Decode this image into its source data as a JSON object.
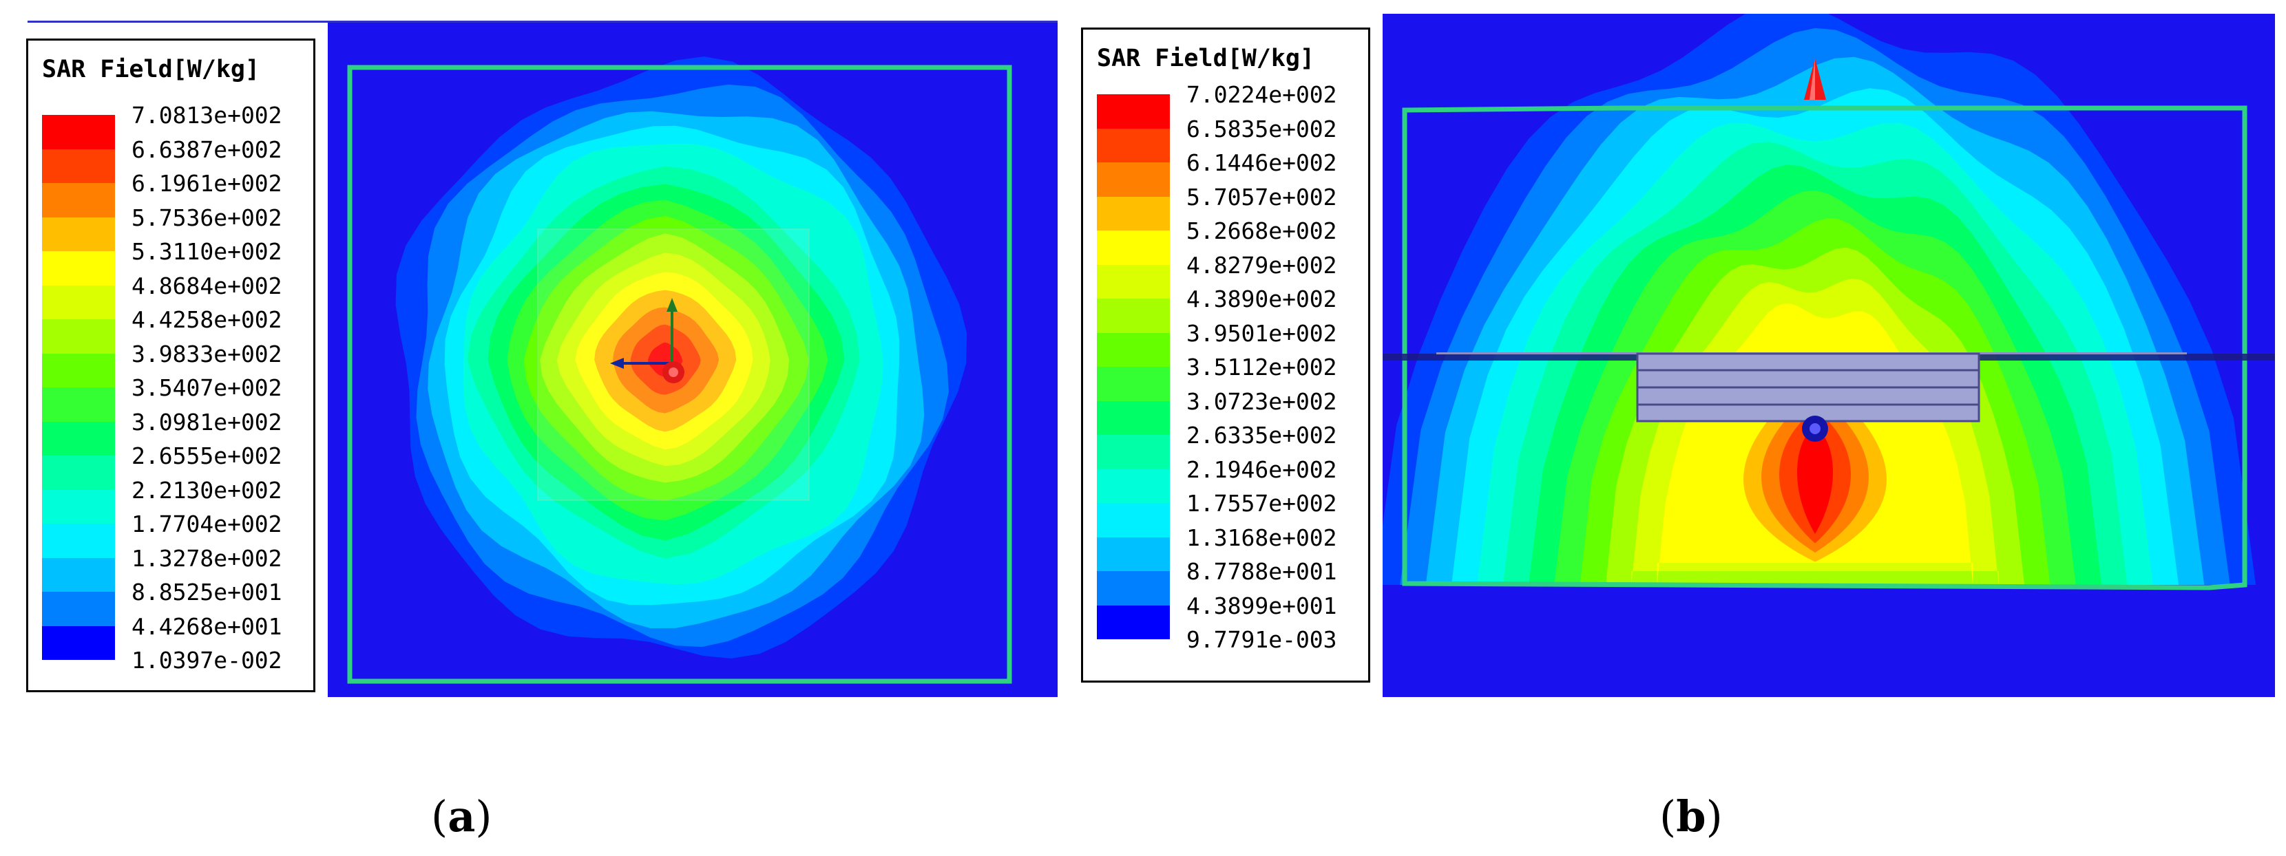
{
  "panels": [
    {
      "id": "a",
      "legend_title": "SAR Field[W/kg]",
      "legend_values": [
        "7.0813e+002",
        "6.6387e+002",
        "6.1961e+002",
        "5.7536e+002",
        "5.3110e+002",
        "4.8684e+002",
        "4.4258e+002",
        "3.9833e+002",
        "3.5407e+002",
        "3.0981e+002",
        "2.6555e+002",
        "2.2130e+002",
        "1.7704e+002",
        "1.3278e+002",
        "8.8525e+001",
        "4.4268e+001",
        "1.0397e-002"
      ],
      "caption": {
        "open": "(",
        "letter": "a",
        "close": ")"
      }
    },
    {
      "id": "b",
      "legend_title": "SAR Field[W/kg]",
      "legend_values": [
        "7.0224e+002",
        "6.5835e+002",
        "6.1446e+002",
        "5.7057e+002",
        "5.2668e+002",
        "4.8279e+002",
        "4.3890e+002",
        "3.9501e+002",
        "3.5112e+002",
        "3.0723e+002",
        "2.6335e+002",
        "2.1946e+002",
        "1.7557e+002",
        "1.3168e+002",
        "8.7788e+001",
        "4.3899e+001",
        "9.7791e-003"
      ],
      "caption": {
        "open": "(",
        "letter": "b",
        "close": ")"
      }
    }
  ],
  "colormap": [
    "#ff0000",
    "#ff4000",
    "#ff8000",
    "#ffbf00",
    "#ffff00",
    "#d9ff00",
    "#a6ff00",
    "#66ff00",
    "#33ff33",
    "#00ff66",
    "#00ffa6",
    "#00ffd9",
    "#00f0ff",
    "#00c0ff",
    "#0080ff",
    "#0040ff",
    "#0000ff"
  ]
}
